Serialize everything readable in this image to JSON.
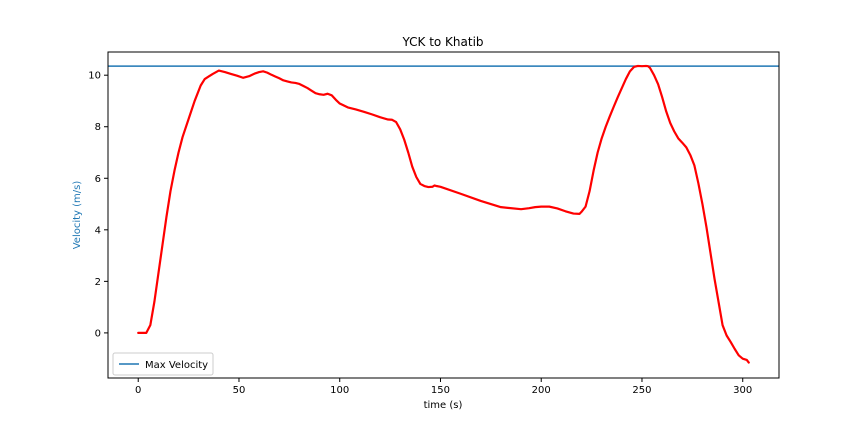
{
  "chart_data": {
    "type": "line",
    "title": "YCK to Khatib",
    "xlabel": "time (s)",
    "ylabel": "Velocity (m/s)",
    "xlim": [
      -15,
      318
    ],
    "ylim": [
      -1.75,
      10.9
    ],
    "xticks": [
      0,
      50,
      100,
      150,
      200,
      250,
      300
    ],
    "yticks": [
      0,
      2,
      4,
      6,
      8,
      10
    ],
    "grid": false,
    "legend": {
      "position": "lower-left",
      "entries": [
        "Max Velocity"
      ]
    },
    "series": [
      {
        "name": "",
        "color": "#ff0000",
        "x": [
          0,
          2,
          4,
          6,
          8,
          10,
          12,
          14,
          16,
          18,
          20,
          22,
          25,
          28,
          31,
          33,
          35,
          37,
          40,
          43,
          46,
          49,
          52,
          55,
          58,
          60,
          62,
          64,
          66,
          68,
          70,
          72,
          74,
          76,
          78,
          80,
          82,
          84,
          86,
          88,
          90,
          92,
          94,
          96,
          98,
          100,
          104,
          108,
          112,
          116,
          120,
          124,
          126,
          128,
          130,
          132,
          134,
          136,
          138,
          140,
          142,
          144,
          146,
          147,
          148,
          150,
          160,
          170,
          180,
          190,
          194,
          197,
          200,
          204,
          208,
          212,
          216,
          219,
          220,
          222,
          224,
          226,
          228,
          230,
          232,
          234,
          236,
          238,
          240,
          242,
          244,
          246,
          248,
          250,
          252,
          253,
          254,
          256,
          258,
          260,
          262,
          264,
          266,
          268,
          270,
          272,
          274,
          276,
          278,
          280,
          282,
          284,
          286,
          288,
          290,
          292,
          294,
          296,
          298,
          300,
          302,
          303
        ],
        "values": [
          0.0,
          0.0,
          0.0,
          0.3,
          1.2,
          2.3,
          3.4,
          4.5,
          5.5,
          6.3,
          7.0,
          7.6,
          8.3,
          9.0,
          9.6,
          9.85,
          9.95,
          10.05,
          10.18,
          10.12,
          10.05,
          9.98,
          9.9,
          9.96,
          10.07,
          10.12,
          10.15,
          10.1,
          10.02,
          9.95,
          9.88,
          9.8,
          9.76,
          9.72,
          9.7,
          9.66,
          9.58,
          9.5,
          9.4,
          9.3,
          9.26,
          9.24,
          9.28,
          9.22,
          9.05,
          8.9,
          8.75,
          8.67,
          8.58,
          8.48,
          8.37,
          8.28,
          8.27,
          8.18,
          7.9,
          7.5,
          7.0,
          6.45,
          6.05,
          5.78,
          5.7,
          5.66,
          5.67,
          5.72,
          5.7,
          5.67,
          5.4,
          5.12,
          4.88,
          4.8,
          4.84,
          4.88,
          4.9,
          4.9,
          4.83,
          4.72,
          4.63,
          4.62,
          4.7,
          4.9,
          5.5,
          6.3,
          7.0,
          7.55,
          8.0,
          8.4,
          8.78,
          9.15,
          9.5,
          9.85,
          10.15,
          10.32,
          10.36,
          10.35,
          10.36,
          10.35,
          10.28,
          10.0,
          9.65,
          9.15,
          8.6,
          8.15,
          7.82,
          7.55,
          7.38,
          7.2,
          6.9,
          6.5,
          5.8,
          5.0,
          4.1,
          3.1,
          2.1,
          1.2,
          0.3,
          -0.1,
          -0.35,
          -0.62,
          -0.87,
          -1.0,
          -1.05,
          -1.15
        ]
      }
    ],
    "hlines": [
      {
        "name": "Max Velocity",
        "y": 10.35,
        "color": "#1f77b4"
      }
    ]
  }
}
